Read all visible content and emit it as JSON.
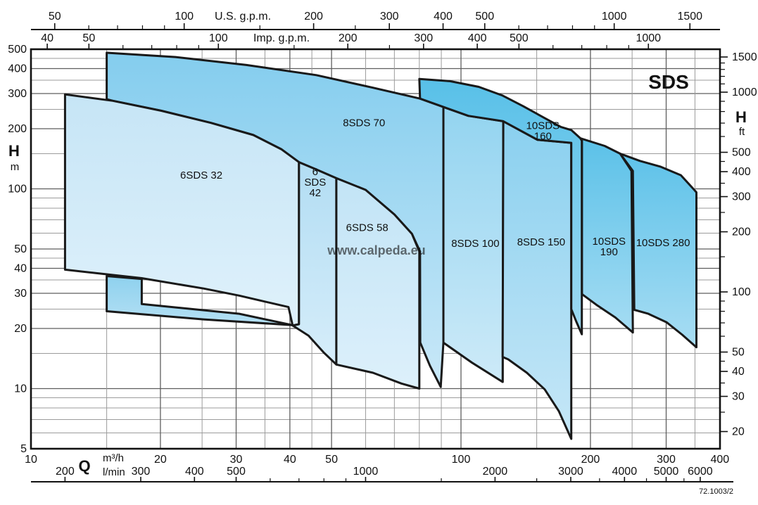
{
  "figure": {
    "title": "SDS",
    "reference_code": "72.1003/2",
    "watermark": "www.calpeda.eu"
  },
  "chart_data": {
    "type": "area",
    "title": "SDS",
    "description": "Pump model selection range chart, head H vs flow Q, log-log scales",
    "axes": {
      "x_bottom_m3h": {
        "label": "Q",
        "unit": "m³/h",
        "range": [
          10,
          400
        ],
        "labels": [
          10,
          20,
          30,
          40,
          50,
          100,
          200,
          300,
          400
        ]
      },
      "x_bottom_lmin": {
        "unit": "l/min",
        "labels": [
          200,
          300,
          400,
          500,
          1000,
          2000,
          3000,
          4000,
          5000,
          6000
        ],
        "minor_ticks": [
          600,
          700,
          800,
          900,
          1500,
          2500,
          3500,
          4500,
          5500
        ]
      },
      "x_top_usgpm": {
        "label": "U.S. g.p.m.",
        "labels": [
          50,
          100,
          200,
          300,
          400,
          500,
          1000,
          1500
        ],
        "minor_ticks": [
          60,
          70,
          80,
          90,
          150,
          250,
          600,
          700,
          800,
          900
        ]
      },
      "x_top_impgpm": {
        "label": "Imp. g.p.m.",
        "labels": [
          40,
          50,
          100,
          200,
          300,
          400,
          500,
          1000
        ],
        "minor_ticks": [
          60,
          70,
          80,
          90,
          150,
          250,
          600,
          700,
          800,
          900
        ]
      },
      "y_left_m": {
        "label": "H",
        "unit": "m",
        "range": [
          5,
          500
        ],
        "labels": [
          500,
          400,
          300,
          200,
          100,
          50,
          40,
          30,
          20,
          10,
          5
        ],
        "grid_major": [
          10,
          20,
          30,
          40,
          50,
          100,
          200,
          300,
          400
        ],
        "grid_minor": [
          6,
          7,
          8,
          9,
          15,
          25,
          35,
          45,
          60,
          70,
          80,
          90,
          150,
          250,
          350,
          450
        ]
      },
      "y_right_ft": {
        "label": "H",
        "unit": "ft",
        "labels": [
          1500,
          1000,
          500,
          400,
          300,
          200,
          100,
          50,
          40,
          30,
          20
        ],
        "minor_ticks": [
          1400,
          1300,
          1200,
          1100,
          900,
          800,
          700,
          600,
          450,
          350,
          250,
          150,
          90,
          80,
          70,
          60,
          45,
          35,
          25
        ]
      },
      "x_grid_major": [
        20,
        30,
        40,
        50,
        100,
        200,
        300
      ],
      "x_grid_minor": [
        15,
        25,
        35,
        45,
        60,
        70,
        80,
        90,
        150,
        250,
        350
      ],
      "grid": true
    },
    "units": {
      "usgpm_per_m3h": 4.4029,
      "impgpm_per_m3h": 3.6662,
      "ft_per_m": 3.2808,
      "lmin_per_m3h": 16.667
    },
    "regions": [
      {
        "id": "8sds70",
        "name": "8SDS 70",
        "label_lines": [
          "8SDS 70"
        ],
        "label_pos": [
          59.5,
          214
        ],
        "fill_top": "#84cdee",
        "fill_bottom": "#c9e8f8",
        "points": [
          [
            15,
            480
          ],
          [
            21.7,
            457
          ],
          [
            31.7,
            417
          ],
          [
            46.1,
            371
          ],
          [
            62.4,
            321
          ],
          [
            80.3,
            283
          ],
          [
            91,
            257
          ],
          [
            104,
            232
          ],
          [
            115,
            195
          ],
          [
            125,
            165
          ],
          [
            125,
            10.8
          ],
          [
            106,
            13.5
          ],
          [
            91,
            17
          ],
          [
            89.7,
            10.2
          ],
          [
            84.7,
            13
          ],
          [
            80.4,
            17
          ],
          [
            80.3,
            48.6
          ],
          [
            76.9,
            59.5
          ],
          [
            70,
            74.4
          ],
          [
            60,
            98.8
          ],
          [
            51.3,
            113
          ],
          [
            46.1,
            125
          ],
          [
            42,
            136
          ],
          [
            38.2,
            158
          ],
          [
            32.9,
            186
          ],
          [
            26.2,
            214
          ],
          [
            20.1,
            246
          ],
          [
            15.5,
            276
          ],
          [
            15,
            281
          ]
        ]
      },
      {
        "id": "8sds100",
        "name": "8SDS 100",
        "label_lines": [
          "8SDS 100"
        ],
        "label_pos": [
          108,
          53.4
        ],
        "fill_top": "#93d4f0",
        "fill_bottom": "#cdeaf8",
        "points": [
          [
            91,
            257
          ],
          [
            104,
            232
          ],
          [
            125.4,
            218
          ],
          [
            125,
            10.8
          ],
          [
            106,
            13.5
          ],
          [
            91,
            17
          ]
        ]
      },
      {
        "id": "8sds150",
        "name": "8SDS 150",
        "label_lines": [
          "8SDS 150"
        ],
        "label_pos": [
          153.6,
          54.3
        ],
        "fill_top": "#8ad0ef",
        "fill_bottom": "#c6e7f7",
        "points": [
          [
            125.4,
            218
          ],
          [
            150.7,
            176
          ],
          [
            180.5,
            170
          ],
          [
            180.5,
            5.6
          ],
          [
            168.9,
            7.7
          ],
          [
            156.6,
            9.9
          ],
          [
            142.3,
            12
          ],
          [
            128.8,
            14
          ],
          [
            125,
            14.4
          ]
        ]
      },
      {
        "id": "10sds160",
        "name": "10SDS 160",
        "label_lines": [
          "10SDS",
          "160"
        ],
        "label_pos": [
          155,
          195
        ],
        "fill_top": "#58c0e8",
        "fill_bottom": "#9fdaf2",
        "points": [
          [
            80,
            355
          ],
          [
            94.3,
            346
          ],
          [
            110,
            324
          ],
          [
            125,
            293
          ],
          [
            139.6,
            259
          ],
          [
            156.6,
            226
          ],
          [
            170.8,
            204
          ],
          [
            180.5,
            197
          ],
          [
            189.6,
            179
          ],
          [
            191,
            174
          ],
          [
            191,
            18.7
          ],
          [
            185.3,
            21.7
          ],
          [
            180.5,
            25
          ],
          [
            180.5,
            170
          ],
          [
            150.7,
            176
          ],
          [
            125.4,
            218
          ],
          [
            104,
            232
          ],
          [
            91,
            257
          ],
          [
            80.3,
            283
          ]
        ]
      },
      {
        "id": "10sds190",
        "name": "10SDS 190",
        "label_lines": [
          "10SDS",
          "190"
        ],
        "label_pos": [
          220.9,
          51.5
        ],
        "fill_top": "#5bc1e8",
        "fill_bottom": "#a5dcf3",
        "points": [
          [
            189.6,
            179
          ],
          [
            215.9,
            164
          ],
          [
            234.5,
            150
          ],
          [
            249.1,
            123
          ],
          [
            251,
            19.1
          ],
          [
            228.5,
            22.7
          ],
          [
            206.3,
            26.3
          ],
          [
            191.1,
            29.7
          ],
          [
            191.1,
            174
          ]
        ]
      },
      {
        "id": "10sds280",
        "name": "10SDS 280",
        "label_lines": [
          "10SDS 280"
        ],
        "label_pos": [
          295,
          53.8
        ],
        "fill_top": "#5ec2e9",
        "fill_bottom": "#a8ddf3",
        "points": [
          [
            234.5,
            150
          ],
          [
            260.7,
            138
          ],
          [
            291.4,
            129
          ],
          [
            324.5,
            117
          ],
          [
            350,
            98
          ],
          [
            352.8,
            96
          ],
          [
            352.8,
            16.1
          ],
          [
            327,
            18.6
          ],
          [
            300.4,
            21.5
          ],
          [
            272.6,
            23.7
          ],
          [
            252.9,
            24.8
          ],
          [
            251,
            123
          ]
        ]
      },
      {
        "id": "6sds32",
        "name": "6SDS 32",
        "label_lines": [
          "6SDS 32"
        ],
        "label_pos": [
          24.9,
          117
        ],
        "fill_top": "#c6e5f6",
        "fill_bottom": "#dff1fb",
        "points": [
          [
            12,
            297
          ],
          [
            15.5,
            276
          ],
          [
            20.1,
            246
          ],
          [
            26.2,
            214
          ],
          [
            32.9,
            186
          ],
          [
            38.2,
            158
          ],
          [
            42,
            136
          ],
          [
            42,
            21
          ],
          [
            40.6,
            20.7
          ],
          [
            39.7,
            25.6
          ],
          [
            30.5,
            29.2
          ],
          [
            25.2,
            31.7
          ],
          [
            18.1,
            35.7
          ],
          [
            12,
            39.4
          ]
        ]
      },
      {
        "id": "6sds32-70overlap",
        "name": "overlap band",
        "label_lines": [],
        "label_pos": null,
        "fill_top": "#8ed1ee",
        "fill_bottom": "#b5e0f4",
        "points": [
          [
            15,
            36.6
          ],
          [
            18.1,
            35.4
          ],
          [
            18.1,
            26.5
          ],
          [
            30.5,
            23.7
          ],
          [
            40.5,
            20.8
          ],
          [
            25.2,
            22.2
          ],
          [
            15,
            24.4
          ]
        ]
      },
      {
        "id": "6sds42",
        "name": "6SDS 42",
        "label_lines": [
          "6",
          "SDS",
          "42"
        ],
        "label_pos": [
          45.8,
          108
        ],
        "fill_top": "#b2ddf3",
        "fill_bottom": "#d6edfa",
        "points": [
          [
            42,
            136
          ],
          [
            46.1,
            125
          ],
          [
            51.3,
            113
          ],
          [
            51.3,
            13.2
          ],
          [
            47.9,
            15.2
          ],
          [
            44.2,
            18.4
          ],
          [
            40.6,
            20.7
          ],
          [
            42,
            21
          ]
        ]
      },
      {
        "id": "6sds58",
        "name": "6SDS 58",
        "label_lines": [
          "6SDS 58"
        ],
        "label_pos": [
          60.5,
          64
        ],
        "fill_top": "#c2e4f6",
        "fill_bottom": "#ddf0fb",
        "points": [
          [
            51.3,
            113
          ],
          [
            60,
            98.8
          ],
          [
            70,
            74.4
          ],
          [
            76.9,
            59.5
          ],
          [
            80,
            48.6
          ],
          [
            80,
            10
          ],
          [
            72.7,
            10.6
          ],
          [
            62.4,
            12
          ],
          [
            51.3,
            13.2
          ]
        ]
      }
    ]
  }
}
